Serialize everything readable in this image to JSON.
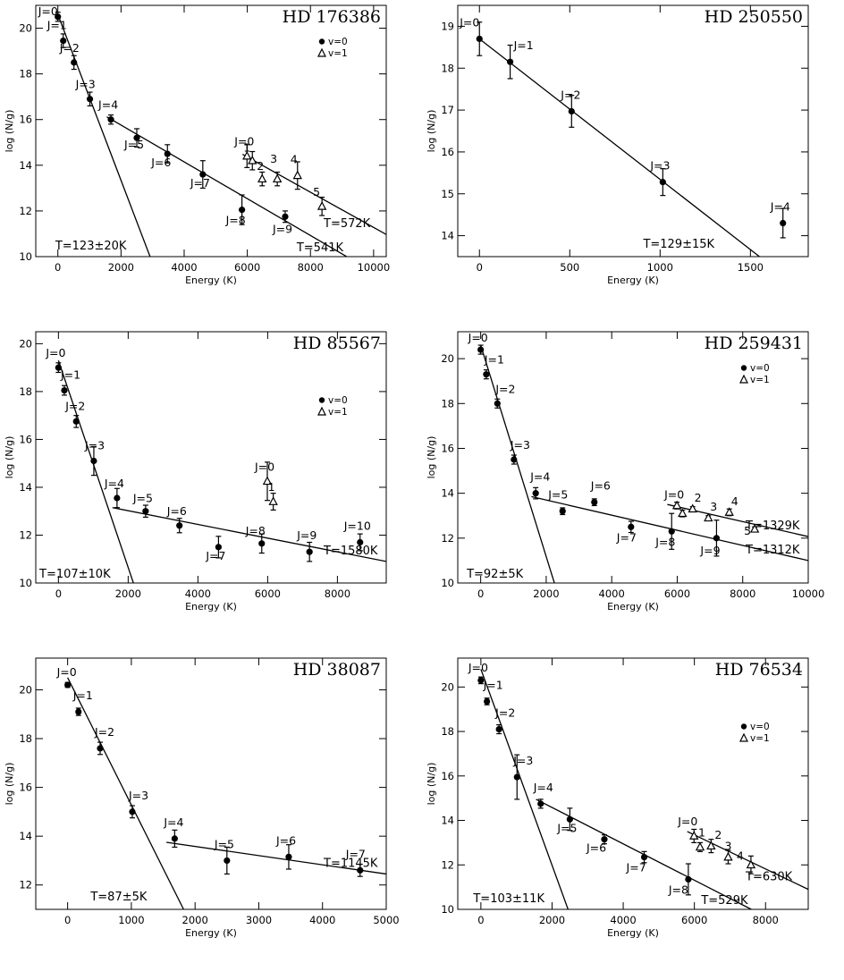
{
  "chart_data": [
    {
      "type": "scatter",
      "title": "HD 176386",
      "xlabel": "Energy (K)",
      "ylabel": "log (N/g)",
      "xlim": [
        -700,
        10400
      ],
      "ylim": [
        10,
        21
      ],
      "xticks": [
        0,
        2000,
        4000,
        6000,
        8000,
        10000
      ],
      "yticks": [
        10,
        12,
        14,
        16,
        18,
        20
      ],
      "legend": {
        "position": "top-right",
        "items": [
          {
            "label": "v=0",
            "marker": "circle"
          },
          {
            "label": "v=1",
            "marker": "triangle"
          }
        ]
      },
      "series": [
        {
          "name": "v=0",
          "marker": "circle",
          "points": [
            {
              "x": 0,
              "y": 20.5,
              "err": 0.2,
              "label": "J=0"
            },
            {
              "x": 170,
              "y": 19.45,
              "err": 0.3,
              "label": "J=1"
            },
            {
              "x": 510,
              "y": 18.5,
              "err": 0.3,
              "label": "J=2"
            },
            {
              "x": 1015,
              "y": 16.9,
              "err": 0.3,
              "label": "J=3"
            },
            {
              "x": 1680,
              "y": 16.0,
              "err": 0.2,
              "label": "J=4"
            },
            {
              "x": 2500,
              "y": 15.2,
              "err": 0.4,
              "label": "J=5"
            },
            {
              "x": 3470,
              "y": 14.5,
              "err": 0.4,
              "label": "J=6"
            },
            {
              "x": 4590,
              "y": 13.6,
              "err": 0.6,
              "label": "J=7"
            },
            {
              "x": 5830,
              "y": 12.05,
              "err": 0.65,
              "label": "J=8"
            },
            {
              "x": 7200,
              "y": 11.75,
              "err": 0.25,
              "label": "J=9"
            }
          ]
        },
        {
          "name": "v=1",
          "marker": "triangle",
          "points": [
            {
              "x": 5990,
              "y": 14.4,
              "err": 0.5,
              "label": "J=0"
            },
            {
              "x": 6160,
              "y": 14.2,
              "err": 0.4,
              "label": "1"
            },
            {
              "x": 6470,
              "y": 13.4,
              "err": 0.3,
              "label": "2"
            },
            {
              "x": 6950,
              "y": 13.4,
              "err": 0.3,
              "label": "3"
            },
            {
              "x": 7590,
              "y": 13.55,
              "err": 0.6,
              "label": "4"
            },
            {
              "x": 8365,
              "y": 12.2,
              "err": 0.4,
              "label": "5"
            }
          ]
        }
      ],
      "fits": [
        {
          "x": [
            0,
            2920
          ],
          "y": [
            20.6,
            10.0
          ],
          "label": "T=123±20K"
        },
        {
          "x": [
            1550,
            9150
          ],
          "y": [
            16.12,
            10.0
          ],
          "label": "T=541K"
        },
        {
          "x": [
            5850,
            10400
          ],
          "y": [
            14.48,
            10.97
          ],
          "label": "T=572K"
        }
      ]
    },
    {
      "type": "scatter",
      "title": "HD 250550",
      "xlabel": "Energy (K)",
      "ylabel": "log (N/g)",
      "xlim": [
        -120,
        1820
      ],
      "ylim": [
        13.5,
        19.5
      ],
      "xticks": [
        0,
        500,
        1000,
        1500
      ],
      "yticks": [
        14,
        15,
        16,
        17,
        18,
        19
      ],
      "series": [
        {
          "name": "v=0",
          "marker": "circle",
          "points": [
            {
              "x": 0,
              "y": 18.7,
              "err": 0.4,
              "label": "J=0"
            },
            {
              "x": 170,
              "y": 18.15,
              "err": 0.4,
              "label": "J=1"
            },
            {
              "x": 510,
              "y": 16.97,
              "err": 0.38,
              "label": "J=2"
            },
            {
              "x": 1015,
              "y": 15.28,
              "err": 0.32,
              "label": "J=3"
            },
            {
              "x": 1680,
              "y": 14.3,
              "err": 0.35,
              "label": "J=4"
            }
          ]
        }
      ],
      "fits": [
        {
          "x": [
            0,
            1550
          ],
          "y": [
            18.7,
            13.5
          ],
          "label": "T=129±15K"
        }
      ]
    },
    {
      "type": "scatter",
      "title": "HD 85567",
      "xlabel": "Energy (K)",
      "ylabel": "log (N/g)",
      "xlim": [
        -650,
        9400
      ],
      "ylim": [
        10,
        20.5
      ],
      "xticks": [
        0,
        2000,
        4000,
        6000,
        8000
      ],
      "yticks": [
        10,
        12,
        14,
        16,
        18,
        20
      ],
      "legend": {
        "position": "right",
        "items": [
          {
            "label": "v=0",
            "marker": "circle"
          },
          {
            "label": "v=1",
            "marker": "triangle"
          }
        ]
      },
      "series": [
        {
          "name": "v=0",
          "marker": "circle",
          "points": [
            {
              "x": 0,
              "y": 19.0,
              "err": 0.2,
              "label": "J=0"
            },
            {
              "x": 170,
              "y": 18.05,
              "err": 0.2,
              "label": "J=1"
            },
            {
              "x": 510,
              "y": 16.75,
              "err": 0.25,
              "label": "J=2"
            },
            {
              "x": 1015,
              "y": 15.1,
              "err": 0.6,
              "label": "J=3"
            },
            {
              "x": 1680,
              "y": 13.55,
              "err": 0.4,
              "label": "J=4"
            },
            {
              "x": 2500,
              "y": 13.0,
              "err": 0.25,
              "label": "J=5"
            },
            {
              "x": 3470,
              "y": 12.4,
              "err": 0.3,
              "label": "J=6"
            },
            {
              "x": 4590,
              "y": 11.5,
              "err": 0.45,
              "label": "J=7"
            },
            {
              "x": 5830,
              "y": 11.65,
              "err": 0.4,
              "label": "J=8"
            },
            {
              "x": 7200,
              "y": 11.3,
              "err": 0.4,
              "label": "J=9"
            },
            {
              "x": 8650,
              "y": 11.7,
              "err": 0.35,
              "label": "J=10"
            }
          ]
        },
        {
          "name": "v=1",
          "marker": "triangle",
          "points": [
            {
              "x": 5990,
              "y": 14.25,
              "err": 0.8,
              "label": "J=0"
            },
            {
              "x": 6160,
              "y": 13.4,
              "err": 0.35,
              "label": "1"
            }
          ]
        }
      ],
      "fits": [
        {
          "x": [
            0,
            2150
          ],
          "y": [
            19.3,
            10.0
          ],
          "label": "T=107±10K"
        },
        {
          "x": [
            1550,
            9400
          ],
          "y": [
            13.15,
            10.9
          ],
          "label": "T=1580K"
        }
      ]
    },
    {
      "type": "scatter",
      "title": "HD 259431",
      "xlabel": "Energy (K)",
      "ylabel": "log (N/g)",
      "xlim": [
        -700,
        10000
      ],
      "ylim": [
        10,
        21.2
      ],
      "xticks": [
        0,
        2000,
        4000,
        6000,
        8000,
        10000
      ],
      "yticks": [
        10,
        12,
        14,
        16,
        18,
        20
      ],
      "legend": {
        "position": "top-right",
        "items": [
          {
            "label": "v=0",
            "marker": "circle"
          },
          {
            "label": "v=1",
            "marker": "triangle"
          }
        ]
      },
      "series": [
        {
          "name": "v=0",
          "marker": "circle",
          "points": [
            {
              "x": 0,
              "y": 20.4,
              "err": 0.2,
              "label": "J=0"
            },
            {
              "x": 170,
              "y": 19.3,
              "err": 0.2,
              "label": "J=1"
            },
            {
              "x": 510,
              "y": 18.0,
              "err": 0.2,
              "label": "J=2"
            },
            {
              "x": 1015,
              "y": 15.5,
              "err": 0.2,
              "label": "J=3"
            },
            {
              "x": 1680,
              "y": 14.0,
              "err": 0.25,
              "label": "J=4"
            },
            {
              "x": 2500,
              "y": 13.2,
              "err": 0.15,
              "label": "J=5"
            },
            {
              "x": 3470,
              "y": 13.6,
              "err": 0.15,
              "label": "J=6"
            },
            {
              "x": 4590,
              "y": 12.5,
              "err": 0.25,
              "label": "J=7"
            },
            {
              "x": 5830,
              "y": 12.3,
              "err": 0.8,
              "label": "J=8"
            },
            {
              "x": 7200,
              "y": 12.0,
              "err": 0.8,
              "label": "J=9"
            }
          ]
        },
        {
          "name": "v=1",
          "marker": "triangle",
          "points": [
            {
              "x": 5990,
              "y": 13.45,
              "err": 0.15,
              "label": "J=0"
            },
            {
              "x": 6160,
              "y": 13.1,
              "err": 0.15,
              "label": ""
            },
            {
              "x": 6470,
              "y": 13.3,
              "err": 0.1,
              "label": "2"
            },
            {
              "x": 6950,
              "y": 12.9,
              "err": 0.1,
              "label": "3"
            },
            {
              "x": 7590,
              "y": 13.15,
              "err": 0.15,
              "label": "4"
            },
            {
              "x": 8365,
              "y": 12.4,
              "err": 0.1,
              "label": "5"
            }
          ]
        }
      ],
      "fits": [
        {
          "x": [
            0,
            2250
          ],
          "y": [
            20.6,
            10.0
          ],
          "label": "T=92±5K"
        },
        {
          "x": [
            1550,
            10000
          ],
          "y": [
            13.85,
            11.0
          ],
          "label": "T=1312K"
        },
        {
          "x": [
            5700,
            10000
          ],
          "y": [
            13.5,
            12.07
          ],
          "label": "T=1329K"
        }
      ]
    },
    {
      "type": "scatter",
      "title": "HD 38087",
      "xlabel": "Energy (K)",
      "ylabel": "log (N/g)",
      "xlim": [
        -500,
        5000
      ],
      "ylim": [
        11,
        21.3
      ],
      "xticks": [
        0,
        1000,
        2000,
        3000,
        4000,
        5000
      ],
      "yticks": [
        12,
        14,
        16,
        18,
        20
      ],
      "series": [
        {
          "name": "v=0",
          "marker": "circle",
          "points": [
            {
              "x": 0,
              "y": 20.2,
              "err": 0.1,
              "label": "J=0"
            },
            {
              "x": 170,
              "y": 19.1,
              "err": 0.15,
              "label": "J=1"
            },
            {
              "x": 510,
              "y": 17.6,
              "err": 0.25,
              "label": "J=2"
            },
            {
              "x": 1015,
              "y": 15.0,
              "err": 0.25,
              "label": "J=3"
            },
            {
              "x": 1680,
              "y": 13.9,
              "err": 0.35,
              "label": "J=4"
            },
            {
              "x": 2500,
              "y": 13.0,
              "err": 0.55,
              "label": "J=5"
            },
            {
              "x": 3470,
              "y": 13.15,
              "err": 0.5,
              "label": "J=6"
            },
            {
              "x": 4590,
              "y": 12.6,
              "err": 0.25,
              "label": "J=7"
            }
          ]
        }
      ],
      "fits": [
        {
          "x": [
            0,
            1820
          ],
          "y": [
            20.5,
            11.0
          ],
          "label": "T=87±5K"
        },
        {
          "x": [
            1550,
            5000
          ],
          "y": [
            13.75,
            12.45
          ],
          "label": "T=1145K"
        }
      ]
    },
    {
      "type": "scatter",
      "title": "HD 76534",
      "xlabel": "Energy (K)",
      "ylabel": "log (N/g)",
      "xlim": [
        -650,
        9200
      ],
      "ylim": [
        10,
        21.3
      ],
      "xticks": [
        0,
        2000,
        4000,
        6000,
        8000
      ],
      "yticks": [
        10,
        12,
        14,
        16,
        18,
        20
      ],
      "legend": {
        "position": "right",
        "items": [
          {
            "label": "v=0",
            "marker": "circle"
          },
          {
            "label": "v=1",
            "marker": "triangle"
          }
        ]
      },
      "series": [
        {
          "name": "v=0",
          "marker": "circle",
          "points": [
            {
              "x": 0,
              "y": 20.3,
              "err": 0.15,
              "label": "J=0"
            },
            {
              "x": 170,
              "y": 19.35,
              "err": 0.15,
              "label": "J=1"
            },
            {
              "x": 510,
              "y": 18.1,
              "err": 0.2,
              "label": "J=2"
            },
            {
              "x": 1015,
              "y": 15.95,
              "err": 1.0,
              "label": "J=3"
            },
            {
              "x": 1680,
              "y": 14.75,
              "err": 0.2,
              "label": "J=4"
            },
            {
              "x": 2500,
              "y": 14.05,
              "err": 0.5,
              "label": "J=5"
            },
            {
              "x": 3470,
              "y": 13.15,
              "err": 0.2,
              "label": "J=6"
            },
            {
              "x": 4590,
              "y": 12.35,
              "err": 0.25,
              "label": "J=7"
            },
            {
              "x": 5830,
              "y": 11.35,
              "err": 0.7,
              "label": "J=8"
            }
          ]
        },
        {
          "name": "v=1",
          "marker": "triangle",
          "points": [
            {
              "x": 5990,
              "y": 13.3,
              "err": 0.3,
              "label": "J=0"
            },
            {
              "x": 6160,
              "y": 12.8,
              "err": 0.2,
              "label": "1"
            },
            {
              "x": 6470,
              "y": 12.85,
              "err": 0.3,
              "label": "2"
            },
            {
              "x": 6950,
              "y": 12.35,
              "err": 0.3,
              "label": "3"
            },
            {
              "x": 7590,
              "y": 12.0,
              "err": 0.4,
              "label": "4"
            }
          ]
        }
      ],
      "fits": [
        {
          "x": [
            0,
            2450
          ],
          "y": [
            20.8,
            10.0
          ],
          "label": "T=103±11K"
        },
        {
          "x": [
            1550,
            7600
          ],
          "y": [
            14.95,
            10.0
          ],
          "label": "T=529K"
        },
        {
          "x": [
            5800,
            9200
          ],
          "y": [
            13.5,
            10.9
          ],
          "label": "T=630K"
        }
      ]
    }
  ]
}
